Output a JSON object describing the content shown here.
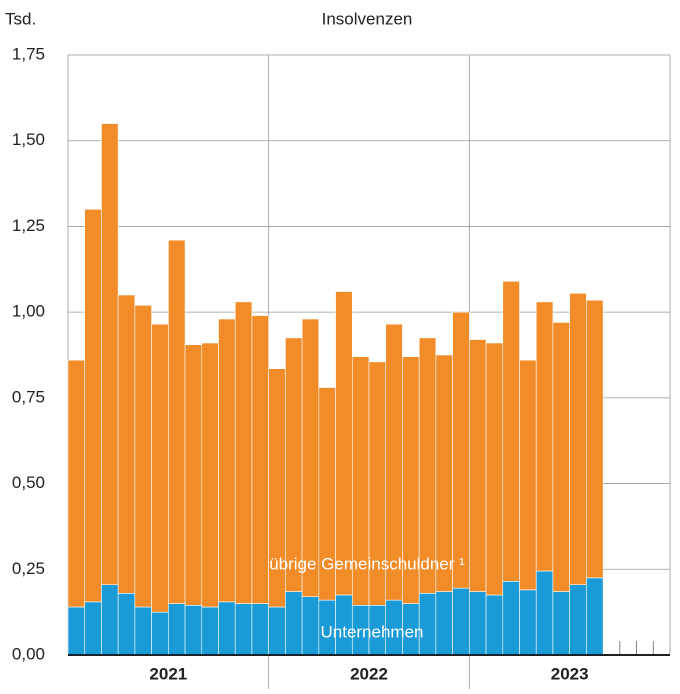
{
  "chart_data": {
    "type": "stacked_bar",
    "title": "Insolvenzen",
    "y_label": "Tsd.",
    "categories": [
      null,
      null,
      null,
      null,
      null,
      null,
      null,
      null,
      null,
      null,
      null,
      null,
      null,
      null,
      null,
      null,
      null,
      null,
      null,
      null,
      null,
      null,
      null,
      null,
      null,
      null,
      null,
      null,
      null,
      null,
      null,
      null
    ],
    "years": [
      "2021",
      "2022",
      "2023"
    ],
    "series": [
      {
        "name": "Unternehmen",
        "color": "#1a9ad6",
        "values": [
          0.14,
          0.155,
          0.205,
          0.18,
          0.14,
          0.125,
          0.15,
          0.145,
          0.14,
          0.155,
          0.15,
          0.15,
          0.14,
          0.185,
          0.17,
          0.16,
          0.175,
          0.145,
          0.145,
          0.16,
          0.15,
          0.18,
          0.185,
          0.195,
          0.185,
          0.175,
          0.215,
          0.19,
          0.245,
          0.185,
          0.205,
          0.225
        ]
      },
      {
        "name": "übrige Gemeinschuldner ¹",
        "color": "#f28c28",
        "values": [
          0.72,
          1.145,
          1.345,
          0.87,
          0.88,
          0.84,
          1.06,
          0.76,
          0.77,
          0.825,
          0.88,
          0.84,
          0.695,
          0.74,
          0.81,
          0.62,
          0.885,
          0.725,
          0.71,
          0.805,
          0.72,
          0.745,
          0.69,
          0.805,
          0.735,
          0.735,
          0.875,
          0.67,
          0.785,
          0.785,
          0.85,
          0.81
        ]
      }
    ],
    "ylim": [
      0,
      1.75
    ],
    "yticks": [
      {
        "value": 0,
        "label": "0,00"
      },
      {
        "value": 0.25,
        "label": "0,25"
      },
      {
        "value": 0.5,
        "label": "0,50"
      },
      {
        "value": 0.75,
        "label": "0,75"
      },
      {
        "value": 1,
        "label": "1,00"
      },
      {
        "value": 1.25,
        "label": "1,25"
      },
      {
        "value": 1.5,
        "label": "1,50"
      },
      {
        "value": 1.75,
        "label": "1,75"
      }
    ],
    "grid": true
  }
}
